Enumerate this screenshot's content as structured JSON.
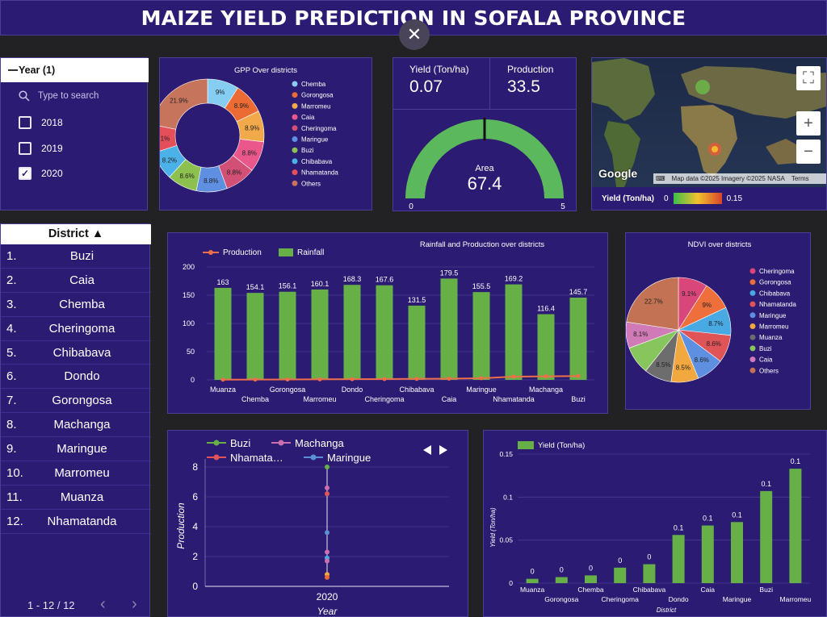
{
  "title": "MAIZE YIELD PREDICTION IN SOFALA PROVINCE",
  "close_icon": "✕",
  "year_filter": {
    "header": "Year (1)",
    "search_placeholder": "Type to search",
    "options": [
      {
        "label": "2018",
        "checked": false
      },
      {
        "label": "2019",
        "checked": false
      },
      {
        "label": "2020",
        "checked": true
      }
    ]
  },
  "district_list": {
    "header": "District ▲",
    "rows": [
      {
        "n": "1.",
        "name": "Buzi"
      },
      {
        "n": "2.",
        "name": "Caia"
      },
      {
        "n": "3.",
        "name": "Chemba"
      },
      {
        "n": "4.",
        "name": "Cheringoma"
      },
      {
        "n": "5.",
        "name": "Chibabava"
      },
      {
        "n": "6.",
        "name": "Dondo"
      },
      {
        "n": "7.",
        "name": "Gorongosa"
      },
      {
        "n": "8.",
        "name": "Machanga"
      },
      {
        "n": "9.",
        "name": "Maringue"
      },
      {
        "n": "10.",
        "name": "Marromeu"
      },
      {
        "n": "11.",
        "name": "Muanza"
      },
      {
        "n": "12.",
        "name": "Nhamatanda"
      }
    ],
    "pager": "1 - 12 / 12"
  },
  "scorecards": {
    "yield_label": "Yield (Ton/ha)",
    "yield_value": "0.07",
    "production_label": "Production",
    "production_value": "33.5"
  },
  "gauge": {
    "label": "Area",
    "value_text": "67.4",
    "min_label": "0",
    "max_label": "5",
    "min": 0,
    "max": 5,
    "target": 2.5,
    "fill_color": "#5cb85c"
  },
  "map": {
    "google": "Google",
    "attribution": "Map data ©2025 Imagery ©2025 NASA",
    "terms": "Terms",
    "legend_label": "Yield (Ton/ha)",
    "legend_min": "0",
    "legend_max": "0.15",
    "fullscreen_icon": "fullscreen-icon",
    "zoom_in": "+",
    "zoom_out": "−"
  },
  "chart_data": [
    {
      "id": "gpp",
      "type": "pie",
      "donut": true,
      "title": "GPP Over districts",
      "labels": [
        "Chemba",
        "Gorongosa",
        "Marromeu",
        "Caia",
        "Cheringoma",
        "Maringue",
        "Buzi",
        "Chibabava",
        "Nhamatanda",
        "Others"
      ],
      "values": [
        9.0,
        8.9,
        8.9,
        8.8,
        8.8,
        8.8,
        8.6,
        8.2,
        8.1,
        21.9
      ],
      "value_labels": [
        "9%",
        "8.9%",
        "8.9%",
        "8.8%",
        "8.8%",
        "8.8%",
        "8.6%",
        "8.2%",
        "8.1%",
        "21.9%"
      ],
      "colors": [
        "#86cdf2",
        "#ec6b34",
        "#f2a94a",
        "#e9578b",
        "#d25075",
        "#5f8fe0",
        "#8cc150",
        "#4bb1e8",
        "#e54f59",
        "#c7745d"
      ]
    },
    {
      "id": "rainfall",
      "type": "bar",
      "title": "Rainfall and Production over districts",
      "categories": [
        "Muanza",
        "Chemba",
        "Gorongosa",
        "Marromeu",
        "Dondo",
        "Cheringoma",
        "Chibabava",
        "Caia",
        "Maringue",
        "Nhamatanda",
        "Machanga",
        "Buzi"
      ],
      "series": [
        {
          "name": "Rainfall",
          "type": "bar",
          "color": "#66b047",
          "values": [
            163,
            154.1,
            156.1,
            160.1,
            168.3,
            167.6,
            131.5,
            179.5,
            155.5,
            169.2,
            116.4,
            145.7
          ]
        },
        {
          "name": "Production",
          "type": "line",
          "color": "#ee6e4a",
          "values": [
            0.4,
            0.6,
            0.8,
            1.0,
            1.3,
            1.5,
            1.8,
            2.2,
            2.8,
            5.8,
            6.2,
            6.8
          ]
        }
      ],
      "value_labels": [
        "163",
        "154.1",
        "156.1",
        "160.1",
        "168.3",
        "167.6",
        "131.5",
        "179.5",
        "155.5",
        "169.2",
        "116.4",
        "145.7"
      ],
      "yticks": [
        "0",
        "50",
        "100",
        "150",
        "200"
      ],
      "ylim": [
        0,
        200
      ],
      "legend": "top-left"
    },
    {
      "id": "ndvi",
      "type": "pie",
      "donut": false,
      "title": "NDVI over districts",
      "labels": [
        "Cheringoma",
        "Gorongosa",
        "Chibabava",
        "Nhamatanda",
        "Maringue",
        "Marromeu",
        "Muanza",
        "Buzi",
        "Caia",
        "Others"
      ],
      "values": [
        9.1,
        9.0,
        8.7,
        8.6,
        8.6,
        8.5,
        8.5,
        8.7,
        8.1,
        22.7
      ],
      "value_labels": [
        "9.1%",
        "9%",
        "8.7%",
        "8.6%",
        "8.6%",
        "8.5%",
        "8.5%",
        "",
        "8.1%",
        "22.7%"
      ],
      "colors": [
        "#d9467a",
        "#ee6e3c",
        "#48a9e3",
        "#e05457",
        "#5f8fe0",
        "#f1a83f",
        "#6d6d6d",
        "#87c55d",
        "#d07ab8",
        "#c37354"
      ]
    },
    {
      "id": "production_year",
      "type": "scatter",
      "xlabel": "Year",
      "ylabel": "Production",
      "x": [
        "2020"
      ],
      "yticks": [
        "0",
        "2",
        "4",
        "6",
        "8"
      ],
      "ylim": [
        0,
        8
      ],
      "legend_visible": [
        {
          "name": "Buzi",
          "color": "#66b047"
        },
        {
          "name": "Machanga",
          "color": "#c870b0"
        },
        {
          "name": "Nhamata…",
          "color": "#e05457"
        },
        {
          "name": "Maringue",
          "color": "#5b8fd6"
        }
      ],
      "points": [
        {
          "y": 8.0,
          "color": "#66b047"
        },
        {
          "y": 6.6,
          "color": "#c870b0"
        },
        {
          "y": 6.2,
          "color": "#e05457"
        },
        {
          "y": 3.6,
          "color": "#5b8fd6"
        },
        {
          "y": 2.3,
          "color": "#c870b0"
        },
        {
          "y": 1.9,
          "color": "#48a9e3"
        },
        {
          "y": 1.7,
          "color": "#c870b0"
        },
        {
          "y": 0.8,
          "color": "#f1a83f"
        },
        {
          "y": 0.6,
          "color": "#ec6b34"
        }
      ]
    },
    {
      "id": "yield",
      "type": "bar",
      "xlabel": "District",
      "ylabel": "Yield (Ton/ha)",
      "series_name": "Yield (Ton/ha)",
      "color": "#66b047",
      "categories": [
        "Muanza",
        "Gorongosa",
        "Chemba",
        "Cheringoma",
        "Chibabava",
        "Dondo",
        "Caia",
        "Maringue",
        "Buzi",
        "Marromeu"
      ],
      "values": [
        0.005,
        0.007,
        0.009,
        0.018,
        0.022,
        0.056,
        0.067,
        0.071,
        0.107,
        0.133
      ],
      "value_labels": [
        "0",
        "0",
        "0",
        "0",
        "0",
        "0.1",
        "0.1",
        "0.1",
        "0.1",
        "0.1"
      ],
      "yticks": [
        "0",
        "0.05",
        "0.1",
        "0.15"
      ],
      "ylim": [
        0,
        0.15
      ]
    }
  ]
}
